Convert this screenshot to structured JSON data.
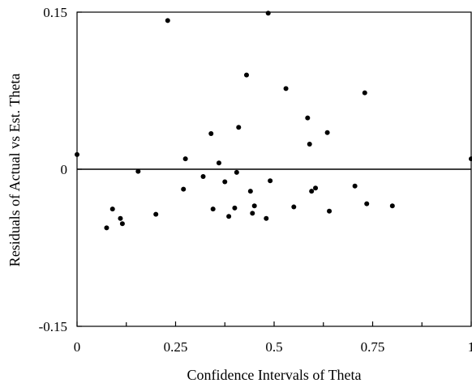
{
  "chart_data": {
    "type": "scatter",
    "title": "",
    "xlabel": "Confidence Intervals of Theta",
    "ylabel": "Residuals of Actual vs Est. Theta",
    "xlim": [
      0,
      1
    ],
    "ylim": [
      -0.15,
      0.15
    ],
    "x_ticks": [
      0,
      0.25,
      0.5,
      0.75,
      1
    ],
    "x_tick_labels": [
      "0",
      "0.25",
      "0.5",
      "0.75",
      "1"
    ],
    "y_ticks": [
      -0.15,
      0,
      0.15
    ],
    "y_tick_labels": [
      "-0.15",
      "0",
      "0.15"
    ],
    "zero_line": true,
    "grid": false,
    "marker_color": "#000000",
    "points": [
      {
        "x": 0.0,
        "y": 0.014
      },
      {
        "x": 0.075,
        "y": -0.056
      },
      {
        "x": 0.09,
        "y": -0.038
      },
      {
        "x": 0.11,
        "y": -0.047
      },
      {
        "x": 0.115,
        "y": -0.052
      },
      {
        "x": 0.155,
        "y": -0.002
      },
      {
        "x": 0.2,
        "y": -0.043
      },
      {
        "x": 0.23,
        "y": 0.142
      },
      {
        "x": 0.27,
        "y": -0.019
      },
      {
        "x": 0.275,
        "y": 0.01
      },
      {
        "x": 0.32,
        "y": -0.007
      },
      {
        "x": 0.34,
        "y": 0.034
      },
      {
        "x": 0.345,
        "y": -0.038
      },
      {
        "x": 0.36,
        "y": 0.006
      },
      {
        "x": 0.375,
        "y": -0.012
      },
      {
        "x": 0.385,
        "y": -0.045
      },
      {
        "x": 0.4,
        "y": -0.037
      },
      {
        "x": 0.405,
        "y": -0.003
      },
      {
        "x": 0.41,
        "y": 0.04
      },
      {
        "x": 0.43,
        "y": 0.09
      },
      {
        "x": 0.44,
        "y": -0.021
      },
      {
        "x": 0.445,
        "y": -0.042
      },
      {
        "x": 0.45,
        "y": -0.035
      },
      {
        "x": 0.48,
        "y": -0.047
      },
      {
        "x": 0.485,
        "y": 0.149
      },
      {
        "x": 0.49,
        "y": -0.011
      },
      {
        "x": 0.53,
        "y": 0.077
      },
      {
        "x": 0.55,
        "y": -0.036
      },
      {
        "x": 0.585,
        "y": 0.049
      },
      {
        "x": 0.59,
        "y": 0.024
      },
      {
        "x": 0.595,
        "y": -0.021
      },
      {
        "x": 0.605,
        "y": -0.018
      },
      {
        "x": 0.635,
        "y": 0.035
      },
      {
        "x": 0.64,
        "y": -0.04
      },
      {
        "x": 0.705,
        "y": -0.016
      },
      {
        "x": 0.73,
        "y": 0.073
      },
      {
        "x": 0.735,
        "y": -0.033
      },
      {
        "x": 0.8,
        "y": -0.035
      },
      {
        "x": 1.0,
        "y": 0.01
      }
    ]
  }
}
